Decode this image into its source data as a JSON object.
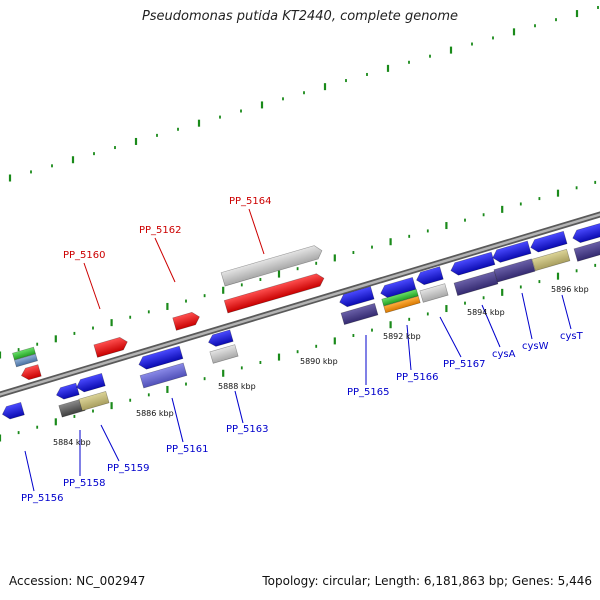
{
  "title": "Pseudomonas putida KT2440, complete genome",
  "footer": {
    "accession": "Accession: NC_002947",
    "summary": "Topology: circular; Length: 6,181,863 bp; Genes: 5,446"
  },
  "colors": {
    "label_forward": "#cc0000",
    "label_reverse": "#0000cc",
    "backbone": "#8a8a8a",
    "tick": "#1a8a1a"
  },
  "genes": [
    {
      "label": "PP_5156",
      "strand": "reverse",
      "color": "#1515e6",
      "icon": "reverse-gene-arrow"
    },
    {
      "label": "PP_5158",
      "strand": "reverse",
      "color": "#1515e6",
      "icon": "reverse-gene-arrow"
    },
    {
      "label": "PP_5159",
      "strand": "reverse",
      "color": "#1515e6",
      "icon": "reverse-gene-arrow"
    },
    {
      "label": "PP_5160",
      "strand": "forward",
      "color": "#ee1111",
      "icon": "forward-gene-arrow"
    },
    {
      "label": "PP_5161",
      "strand": "reverse",
      "color": "#1515e6",
      "icon": "reverse-gene-arrow"
    },
    {
      "label": "PP_5162",
      "strand": "forward",
      "color": "#ee1111",
      "icon": "forward-gene-arrow"
    },
    {
      "label": "PP_5163",
      "strand": "reverse",
      "color": "#1515e6",
      "icon": "reverse-gene-arrow"
    },
    {
      "label": "PP_5164",
      "strand": "forward",
      "color": "#ee1111",
      "icon": "forward-gene-arrow"
    },
    {
      "label": "PP_5165",
      "strand": "reverse",
      "color": "#1515e6",
      "icon": "reverse-gene-arrow"
    },
    {
      "label": "PP_5166",
      "strand": "reverse",
      "color": "#1515e6",
      "icon": "reverse-gene-arrow"
    },
    {
      "label": "PP_5167",
      "strand": "reverse",
      "color": "#1515e6",
      "icon": "reverse-gene-arrow"
    },
    {
      "label": "cysA",
      "strand": "reverse",
      "color": "#1515e6",
      "icon": "reverse-gene-arrow"
    },
    {
      "label": "cysW",
      "strand": "reverse",
      "color": "#1515e6",
      "icon": "reverse-gene-arrow"
    },
    {
      "label": "cysT",
      "strand": "reverse",
      "color": "#1515e6",
      "icon": "reverse-gene-arrow"
    }
  ],
  "positions": [
    "5884 kbp",
    "5886 kbp",
    "5888 kbp",
    "5890 kbp",
    "5892 kbp",
    "5894 kbp",
    "5896 kbp"
  ]
}
